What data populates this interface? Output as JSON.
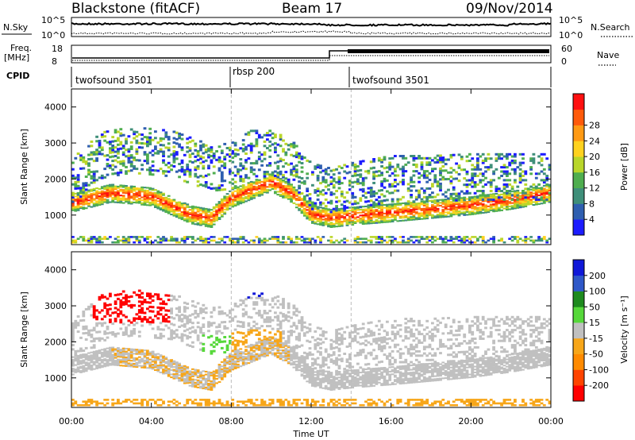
{
  "header": {
    "title": "Blackstone (fitACF)",
    "beam": "Beam 17",
    "date": "09/Nov/2014"
  },
  "chart_data": [
    {
      "type": "line",
      "panel": "noise",
      "left_label": "N.Sky",
      "right_label": "N.Search",
      "left_ticks": [
        "10^5",
        "10^0"
      ],
      "right_ticks": [
        "10^5",
        "10^0"
      ]
    },
    {
      "type": "line",
      "panel": "frequency",
      "left_label_1": "Freq.",
      "left_label_2": "[MHz]",
      "right_label": "Nave",
      "left_ticks": [
        "18",
        "8"
      ],
      "right_ticks": [
        "60",
        "0"
      ]
    },
    {
      "type": "table",
      "panel": "cpid",
      "label": "CPID",
      "segments": [
        {
          "name": "twofsound 3501",
          "start_hour": 0,
          "end_hour": 8
        },
        {
          "name": "rbsp 200",
          "start_hour": 8,
          "end_hour": 14
        },
        {
          "name": "twofsound 3501",
          "start_hour": 14,
          "end_hour": 24
        }
      ]
    },
    {
      "type": "heatmap",
      "panel": "power",
      "ylabel": "Slant Range [km]",
      "ylim": [
        180,
        4500
      ],
      "yticks": [
        1000,
        2000,
        3000,
        4000
      ],
      "colorbar_label": "Power [dB]",
      "colorbar_ticks": [
        "4",
        "8",
        "12",
        "16",
        "20",
        "24",
        "28"
      ],
      "colorbar_colors": [
        "#1c1cff",
        "#2f5fb0",
        "#3f8f7a",
        "#4fae4f",
        "#b9d62a",
        "#ffd21f",
        "#ff9a14",
        "#ff5a0a",
        "#ff1010"
      ],
      "lower_band_km": [
        [
          0,
          1320
        ],
        [
          2,
          1600
        ],
        [
          4,
          1500
        ],
        [
          5,
          1250
        ],
        [
          6,
          1000
        ],
        [
          7,
          900
        ],
        [
          8,
          1450
        ],
        [
          10,
          1900
        ],
        [
          11,
          1600
        ],
        [
          12,
          1020
        ],
        [
          13,
          900
        ],
        [
          14,
          960
        ],
        [
          16,
          1050
        ],
        [
          18,
          1150
        ],
        [
          20,
          1250
        ],
        [
          22,
          1400
        ],
        [
          23.5,
          1550
        ],
        [
          24,
          1600
        ]
      ],
      "upper_band_km": [
        [
          0,
          1650
        ],
        [
          1.5,
          2400
        ],
        [
          3,
          2550
        ],
        [
          5,
          2450
        ],
        [
          7,
          2050
        ],
        [
          8,
          2100
        ],
        [
          9,
          2450
        ],
        [
          10,
          2450
        ],
        [
          11,
          2200
        ],
        [
          12,
          1550
        ],
        [
          13,
          1400
        ],
        [
          14,
          1550
        ],
        [
          16,
          1750
        ],
        [
          18,
          1750
        ],
        [
          20,
          1800
        ],
        [
          22,
          1800
        ],
        [
          24,
          1800
        ]
      ],
      "low_range_band_km": [
        220,
        420
      ]
    },
    {
      "type": "heatmap",
      "panel": "velocity",
      "ylabel": "Slant Range [km]",
      "ylim": [
        180,
        4500
      ],
      "yticks": [
        1000,
        2000,
        3000,
        4000
      ],
      "xlabel": "Time UT",
      "xticks": [
        "00:00",
        "04:00",
        "08:00",
        "12:00",
        "16:00",
        "20:00",
        "00:00"
      ],
      "colorbar_label": "Velocity [m s⁻¹]",
      "colorbar_ticks": [
        "200",
        "100",
        "50",
        "15",
        "-15",
        "-50",
        "-100",
        "-200"
      ],
      "colorbar_colors": [
        "#1018d8",
        "#2f58c8",
        "#1e8a1e",
        "#56d83a",
        "#c0c0c0",
        "#f7a619",
        "#ff8a00",
        "#ff4400",
        "#ff0000"
      ]
    }
  ]
}
